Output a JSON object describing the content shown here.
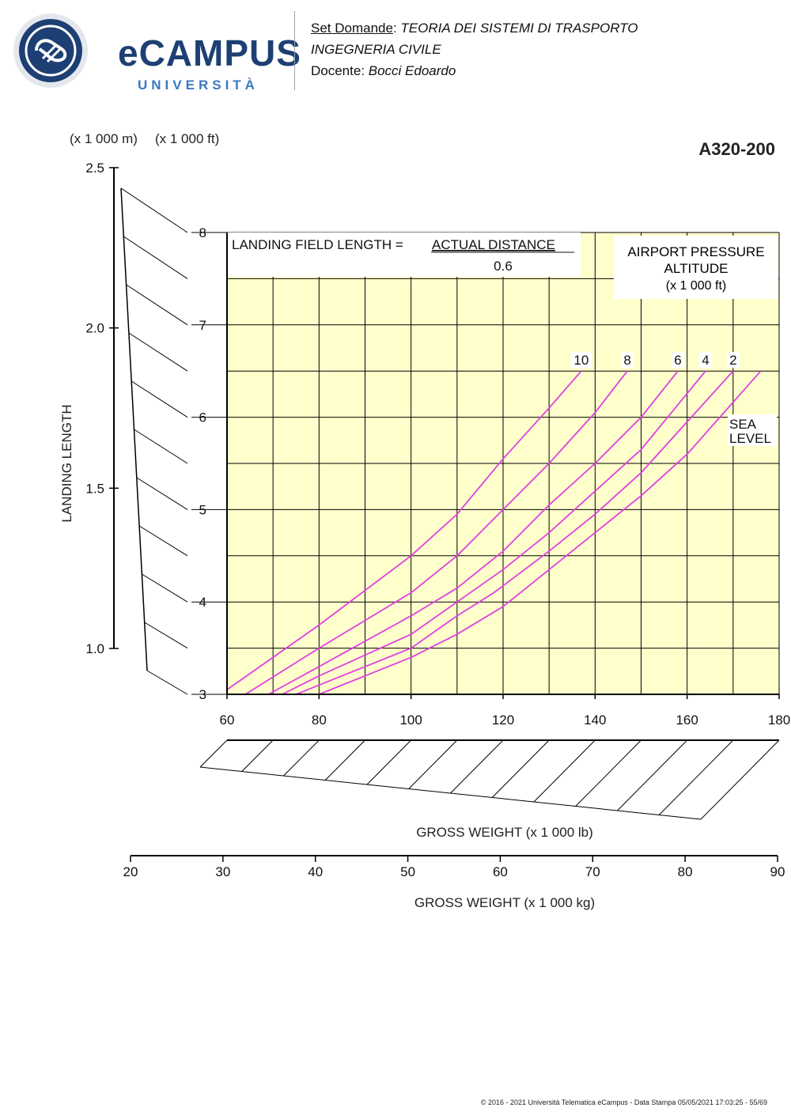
{
  "header": {
    "logo_text": "eCAMPUS",
    "logo_sub": "UNIVERSITÀ",
    "set_label": "Set Domande",
    "set_sep": ": ",
    "course": "TEORIA DEI SISTEMI DI TRASPORTO",
    "program": "INGEGNERIA CIVILE",
    "teacher_label": "Docente: ",
    "teacher": "Bocci Edoardo"
  },
  "footer": "© 2016 - 2021 Università Telematica eCampus - Data Stampa 05/05/2021 17:03:25 - 55/69",
  "colors": {
    "curve": "#e040e0",
    "plot_bg": "#ffffcc",
    "brand": "#1d3f73"
  },
  "chart_data": {
    "type": "line",
    "title": "A320-200",
    "ylabel": "LANDING LENGTH",
    "xlabel": "GROSS WEIGHT (x 1 000 lb)",
    "xlabel_secondary": "GROSS WEIGHT (x 1 000 kg)",
    "y_units_m": "(x 1 000 m)",
    "y_units_ft": "(x 1 000 ft)",
    "formula_lhs": "LANDING FIELD LENGTH = ",
    "formula_num": "ACTUAL DISTANCE",
    "formula_den": "0.6",
    "legend_title": [
      "AIRPORT PRESSURE",
      "ALTITUDE",
      "(x 1 000 ft)"
    ],
    "xlim": [
      60,
      180
    ],
    "ylim": [
      3,
      8
    ],
    "x_ticks": [
      "60",
      "80",
      "100",
      "120",
      "140",
      "160",
      "180"
    ],
    "y_ticks_ft": [
      "3",
      "4",
      "5",
      "6",
      "7",
      "8"
    ],
    "y_ticks_m": [
      "1.0",
      "1.5",
      "2.0",
      "2.5"
    ],
    "kg_ticks": [
      "20",
      "30",
      "40",
      "50",
      "60",
      "70",
      "80",
      "90"
    ],
    "grid": true,
    "series": [
      {
        "name": "10",
        "x": [
          60,
          80,
          100,
          110,
          120,
          130,
          137
        ],
        "y": [
          3.05,
          3.75,
          4.5,
          4.95,
          5.55,
          6.1,
          6.5
        ]
      },
      {
        "name": "8",
        "x": [
          64,
          80,
          100,
          110,
          120,
          130,
          140,
          147
        ],
        "y": [
          3.0,
          3.5,
          4.1,
          4.5,
          5.0,
          5.5,
          6.05,
          6.5
        ]
      },
      {
        "name": "6",
        "x": [
          69,
          80,
          100,
          110,
          120,
          130,
          140,
          150,
          158
        ],
        "y": [
          3.0,
          3.3,
          3.85,
          4.15,
          4.55,
          5.05,
          5.5,
          6.0,
          6.5
        ]
      },
      {
        "name": "4",
        "x": [
          72,
          80,
          100,
          110,
          120,
          130,
          140,
          150,
          164
        ],
        "y": [
          3.0,
          3.2,
          3.65,
          4.0,
          4.35,
          4.75,
          5.2,
          5.65,
          6.5
        ]
      },
      {
        "name": "2",
        "x": [
          75,
          80,
          100,
          110,
          118,
          130,
          140,
          150,
          170
        ],
        "y": [
          3.0,
          3.1,
          3.5,
          3.85,
          4.1,
          4.55,
          4.95,
          5.4,
          6.5
        ]
      },
      {
        "name": "SEA LEVEL",
        "x": [
          80,
          100,
          110,
          120,
          130,
          140,
          150,
          160,
          176
        ],
        "y": [
          3.0,
          3.4,
          3.65,
          3.95,
          4.35,
          4.75,
          5.15,
          5.6,
          6.5
        ]
      }
    ]
  }
}
